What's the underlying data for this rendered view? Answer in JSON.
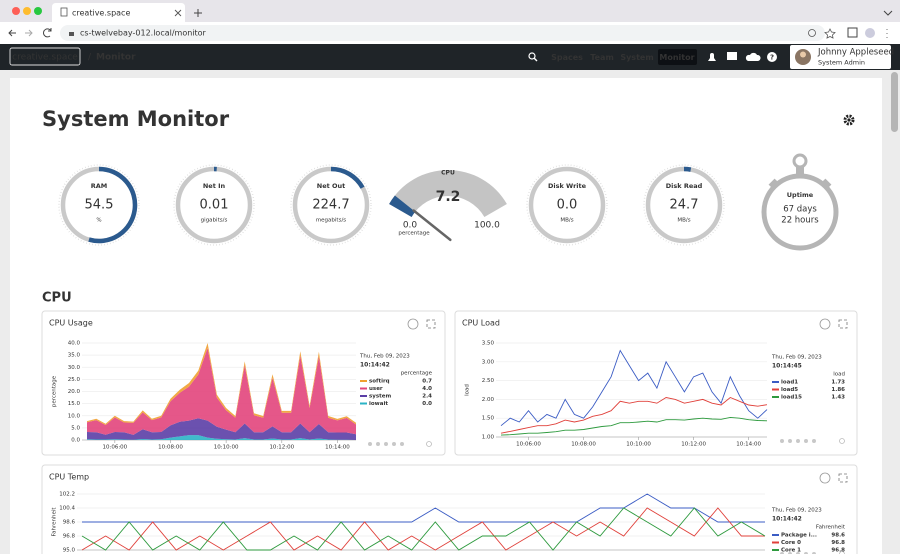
{
  "browser": {
    "tab_title": "creative.space",
    "url": "cs-twelvebay-012.local/monitor"
  },
  "nav": {
    "logo": "creative.space",
    "breadcrumb": "Monitor",
    "links": [
      "Spaces",
      "Team",
      "System",
      "Monitor"
    ],
    "user_name": "Johnny Appleseed",
    "user_role": "System Admin"
  },
  "page": {
    "title": "System Monitor",
    "section": "CPU"
  },
  "gauges": [
    {
      "label": "RAM",
      "value": 54.5,
      "unit": "%"
    },
    {
      "label": "Net In",
      "value": 0.01,
      "unit": "gigabits/s"
    },
    {
      "label": "Net Out",
      "value": 224.7,
      "unit": "megabits/s"
    },
    {
      "label": "Disk Write",
      "value": 0,
      "value_label": "0.0",
      "unit": "MB/s"
    },
    {
      "label": "Disk Read",
      "value": 24.7,
      "unit": "MB/s"
    }
  ],
  "cpu_gauge": {
    "label": "CPU",
    "value": 7.2,
    "min": {
      "value": 0,
      "label": "0.0"
    },
    "max": {
      "value": 100,
      "label": "100.0"
    },
    "unit": "percentage"
  },
  "uptime": {
    "label": "Uptime",
    "days": "67 days",
    "hours": "22 hours"
  },
  "charts": [
    {
      "type": "stacked_area",
      "title": "CPU Usage",
      "y_label": "percentage",
      "x": [
        "10:05:00",
        "10:05:20",
        "10:05:40",
        "10:06:00",
        "10:06:20",
        "10:06:40",
        "10:07:00",
        "10:07:20",
        "10:07:40",
        "10:08:00",
        "10:08:20",
        "10:08:40",
        "10:09:00",
        "10:09:20",
        "10:09:40",
        "10:10:00",
        "10:10:20",
        "10:10:40",
        "10:11:00",
        "10:11:20",
        "10:11:40",
        "10:12:00",
        "10:12:20",
        "10:12:40",
        "10:13:00",
        "10:13:20",
        "10:13:40",
        "10:14:00",
        "10:14:20",
        "10:14:40"
      ],
      "xticks": [
        "10:06:00",
        "10:08:00",
        "10:10:00",
        "10:12:00",
        "10:14:00"
      ],
      "ylim": [
        0,
        40
      ],
      "yticks": [
        {
          "value": 0,
          "label": "0.0"
        },
        {
          "value": 5,
          "label": "5.0"
        },
        {
          "value": 10,
          "label": "10.0"
        },
        {
          "value": 15,
          "label": "15.0"
        },
        {
          "value": 20,
          "label": "20.0"
        },
        {
          "value": 25,
          "label": "25.0"
        },
        {
          "value": 30,
          "label": "30.0"
        },
        {
          "value": 35,
          "label": "35.0"
        },
        {
          "value": 40,
          "label": "40.0"
        }
      ],
      "tooltip": {
        "date": "Thu, Feb 09, 2023",
        "time": "10:14:42",
        "header": "percentage"
      },
      "series": [
        {
          "name": "softirq",
          "color": "#f0a030",
          "current": "0.7",
          "values": [
            0.5,
            0.6,
            0.5,
            0.7,
            0.6,
            0.5,
            0.8,
            0.6,
            0.7,
            1,
            1.2,
            1.5,
            1.6,
            2,
            1.2,
            0.9,
            0.7,
            1.6,
            0.8,
            0.7,
            1.5,
            0.8,
            0.8,
            1.8,
            0.9,
            1.8,
            0.7,
            0.6,
            0.7,
            0.7
          ]
        },
        {
          "name": "user",
          "color": "#e2457c",
          "current": "4.0",
          "values": [
            4,
            5,
            4,
            6,
            4,
            5,
            7,
            5,
            6,
            10,
            12,
            14,
            18,
            30,
            12,
            8,
            6,
            24,
            7,
            6,
            20,
            8,
            8,
            28,
            10,
            28,
            6,
            5,
            6,
            4
          ]
        },
        {
          "name": "system",
          "color": "#5b3ea6",
          "current": "2.4",
          "values": [
            3,
            3,
            2,
            3,
            3,
            2,
            4,
            3,
            3,
            5,
            6,
            6,
            7,
            7,
            5,
            4,
            3,
            6,
            3,
            3,
            5,
            3,
            3,
            6,
            3,
            6,
            3,
            3,
            3,
            2.4
          ]
        },
        {
          "name": "iowait",
          "color": "#2bb3c6",
          "current": "0.0",
          "values": [
            0.3,
            0.2,
            0.2,
            0.3,
            0.2,
            0.1,
            0.4,
            0.2,
            0.3,
            1,
            1.5,
            2,
            2,
            1,
            0.5,
            0.3,
            0.2,
            0.8,
            0.2,
            0.2,
            0.6,
            0.2,
            0.2,
            0.8,
            0.2,
            0.6,
            0.2,
            0.1,
            0.1,
            0
          ]
        }
      ]
    },
    {
      "type": "line",
      "title": "CPU Load",
      "y_label": "load",
      "x": [
        "10:05:00",
        "10:05:20",
        "10:05:40",
        "10:06:00",
        "10:06:20",
        "10:06:40",
        "10:07:00",
        "10:07:20",
        "10:07:40",
        "10:08:00",
        "10:08:20",
        "10:08:40",
        "10:09:00",
        "10:09:20",
        "10:09:40",
        "10:10:00",
        "10:10:20",
        "10:10:40",
        "10:11:00",
        "10:11:20",
        "10:11:40",
        "10:12:00",
        "10:12:20",
        "10:12:40",
        "10:13:00",
        "10:13:20",
        "10:13:40",
        "10:14:00",
        "10:14:20",
        "10:14:40"
      ],
      "xticks": [
        "10:06:00",
        "10:08:00",
        "10:10:00",
        "10:12:00",
        "10:14:00"
      ],
      "ylim": [
        1,
        3.5
      ],
      "yticks": [
        {
          "value": 1,
          "label": "1.00"
        },
        {
          "value": 1.5,
          "label": "1.50"
        },
        {
          "value": 2,
          "label": "2.00"
        },
        {
          "value": 2.5,
          "label": "2.50"
        },
        {
          "value": 3,
          "label": "3.00"
        },
        {
          "value": 3.5,
          "label": "3.50"
        }
      ],
      "tooltip": {
        "date": "Thu, Feb 09, 2023",
        "time": "10:14:45",
        "header": "load"
      },
      "series": [
        {
          "name": "load1",
          "color": "#3b5cc4",
          "current": "1.73",
          "values": [
            1.3,
            1.5,
            1.4,
            1.7,
            1.4,
            1.6,
            1.5,
            2.0,
            1.6,
            1.5,
            1.8,
            2.2,
            2.6,
            3.3,
            2.9,
            2.5,
            2.7,
            2.3,
            3.0,
            2.6,
            2.2,
            2.6,
            2.7,
            2.2,
            1.9,
            2.6,
            2.1,
            1.7,
            1.5,
            1.73
          ]
        },
        {
          "name": "load5",
          "color": "#e0403a",
          "current": "1.86",
          "values": [
            1.1,
            1.15,
            1.2,
            1.25,
            1.3,
            1.3,
            1.35,
            1.45,
            1.4,
            1.45,
            1.55,
            1.6,
            1.7,
            1.95,
            1.9,
            1.95,
            1.95,
            1.9,
            2.05,
            2.0,
            1.9,
            1.95,
            2.0,
            1.9,
            1.85,
            2.05,
            1.95,
            1.85,
            1.82,
            1.86
          ]
        },
        {
          "name": "load15",
          "color": "#2e9a3e",
          "current": "1.43",
          "values": [
            1.05,
            1.06,
            1.08,
            1.1,
            1.1,
            1.12,
            1.14,
            1.18,
            1.18,
            1.2,
            1.24,
            1.28,
            1.3,
            1.38,
            1.38,
            1.4,
            1.42,
            1.4,
            1.46,
            1.46,
            1.45,
            1.48,
            1.5,
            1.48,
            1.47,
            1.52,
            1.5,
            1.46,
            1.44,
            1.43
          ]
        }
      ]
    },
    {
      "type": "line",
      "title": "CPU Temp",
      "y_label": "Fahrenheit",
      "x": [
        "10:05:00",
        "10:05:20",
        "10:05:40",
        "10:06:00",
        "10:06:20",
        "10:06:40",
        "10:07:00",
        "10:07:20",
        "10:07:40",
        "10:08:00",
        "10:08:20",
        "10:08:40",
        "10:09:00",
        "10:09:20",
        "10:09:40",
        "10:10:00",
        "10:10:20",
        "10:10:40",
        "10:11:00",
        "10:11:20",
        "10:11:40",
        "10:12:00",
        "10:12:20",
        "10:12:40",
        "10:13:00",
        "10:13:20",
        "10:13:40",
        "10:14:00",
        "10:14:20",
        "10:14:40"
      ],
      "ylim": [
        95,
        102.2
      ],
      "yticks": [
        {
          "value": 95,
          "label": "95.0"
        },
        96.8,
        98.6,
        100.4,
        102.2
      ],
      "tooltip": {
        "date": "Thu, Feb 09, 2023",
        "time": "10:14:42",
        "header": "Fahrenheit"
      },
      "series": [
        {
          "name": "Package i...",
          "color": "#3b5cc4",
          "current": "98.6",
          "values": [
            98.6,
            98.6,
            98.6,
            98.6,
            98.6,
            98.6,
            98.6,
            98.6,
            98.6,
            98.6,
            98.6,
            98.6,
            98.6,
            98.6,
            98.6,
            100.4,
            98.6,
            98.6,
            98.6,
            98.6,
            98.6,
            98.6,
            100.4,
            100.4,
            102.2,
            100.4,
            100.4,
            98.6,
            98.6,
            98.6
          ]
        },
        {
          "name": "Core 0",
          "color": "#e0403a",
          "current": "96.8",
          "values": [
            95,
            96.8,
            95,
            98.6,
            95,
            96.8,
            95,
            96.8,
            98.6,
            95,
            96.8,
            95,
            98.6,
            95,
            96.8,
            95,
            96.8,
            98.6,
            95,
            96.8,
            98.6,
            96.8,
            98.6,
            96.8,
            100.4,
            98.6,
            96.8,
            100.4,
            96.8,
            96.8
          ]
        },
        {
          "name": "Core 1",
          "color": "#2e9a3e",
          "current": "96.8",
          "values": [
            96.8,
            95,
            98.6,
            95,
            96.8,
            95,
            98.6,
            95,
            95,
            96.8,
            95,
            98.6,
            95,
            96.8,
            95,
            98.6,
            95,
            96.8,
            96.8,
            98.6,
            95,
            98.6,
            96.8,
            100.4,
            98.6,
            96.8,
            100.4,
            96.8,
            98.6,
            96.8
          ]
        }
      ]
    }
  ]
}
